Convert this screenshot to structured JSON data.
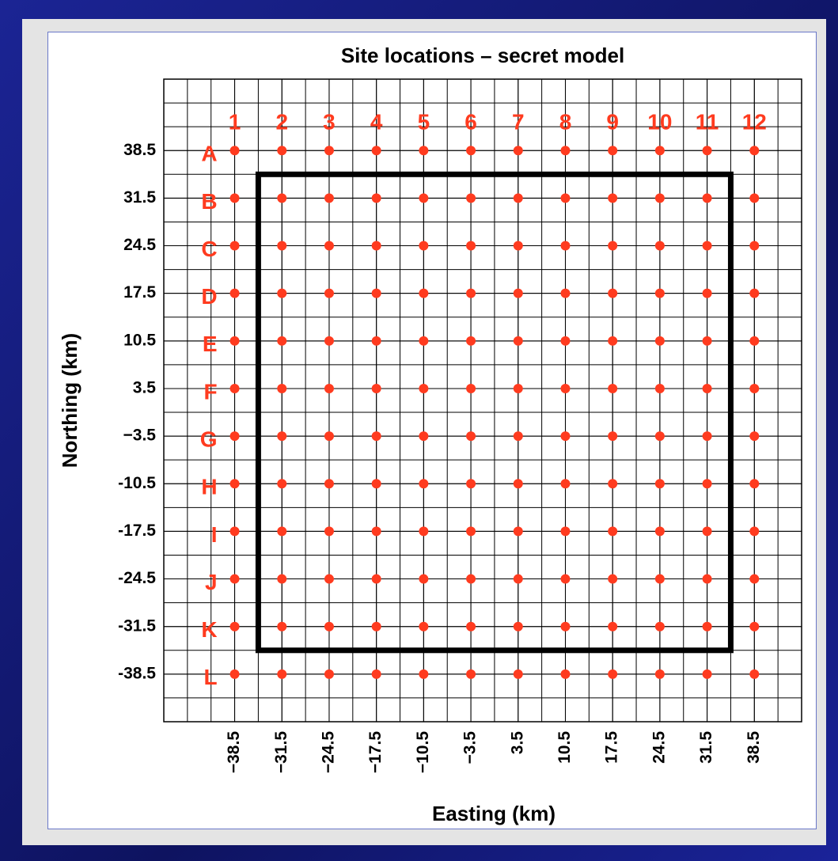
{
  "chart_data": {
    "type": "scatter",
    "title": "Site locations – secret model",
    "xlabel": "Easting (km)",
    "ylabel": "Northing (km)",
    "x": [
      -38.5,
      -31.5,
      -24.5,
      -17.5,
      -10.5,
      -3.5,
      3.5,
      10.5,
      17.5,
      24.5,
      31.5,
      38.5
    ],
    "y": [
      38.5,
      31.5,
      24.5,
      17.5,
      10.5,
      3.5,
      -3.5,
      -10.5,
      -17.5,
      -24.5,
      -31.5,
      -38.5
    ],
    "col_labels": [
      "1",
      "2",
      "3",
      "4",
      "5",
      "6",
      "7",
      "8",
      "9",
      "10",
      "11",
      "12"
    ],
    "row_labels": [
      "A",
      "B",
      "C",
      "D",
      "E",
      "F",
      "G",
      "H",
      "I",
      "J",
      "K",
      "L"
    ],
    "color": "#ff3b1f",
    "xlim": [
      -49,
      45.5
    ],
    "ylim": [
      -45.5,
      49
    ],
    "xticks": [
      {
        "value": -38.5,
        "label": "−38.5"
      },
      {
        "value": -31.5,
        "label": "−31.5"
      },
      {
        "value": -24.5,
        "label": "−24.5"
      },
      {
        "value": -17.5,
        "label": "−17.5"
      },
      {
        "value": -10.5,
        "label": "−10.5"
      },
      {
        "value": -3.5,
        "label": "−3.5"
      },
      3.5,
      10.5,
      17.5,
      24.5,
      31.5,
      38.5
    ],
    "yticks": [
      38.5,
      31.5,
      24.5,
      17.5,
      10.5,
      3.5,
      {
        "value": -3.5,
        "label": "−3.5"
      },
      -10.5,
      -17.5,
      -24.5,
      -31.5,
      -38.5
    ],
    "xgrid": [
      -45.5,
      -42,
      -38.5,
      -35,
      -31.5,
      -28,
      -24.5,
      -21,
      -17.5,
      -14,
      -10.5,
      -7,
      -3.5,
      0,
      3.5,
      7,
      10.5,
      14,
      17.5,
      21,
      24.5,
      28,
      31.5,
      35,
      38.5,
      42
    ],
    "ygrid": [
      -42,
      -38.5,
      -35,
      -31.5,
      -28,
      -24.5,
      -21,
      -17.5,
      -14,
      -10.5,
      -7,
      -3.5,
      0,
      3.5,
      7,
      10.5,
      14,
      17.5,
      21,
      24.5,
      28,
      31.5,
      35,
      38.5,
      42,
      45.5
    ],
    "grid": true,
    "box": {
      "x": [
        -35,
        35
      ],
      "y": [
        -35,
        35
      ]
    }
  }
}
